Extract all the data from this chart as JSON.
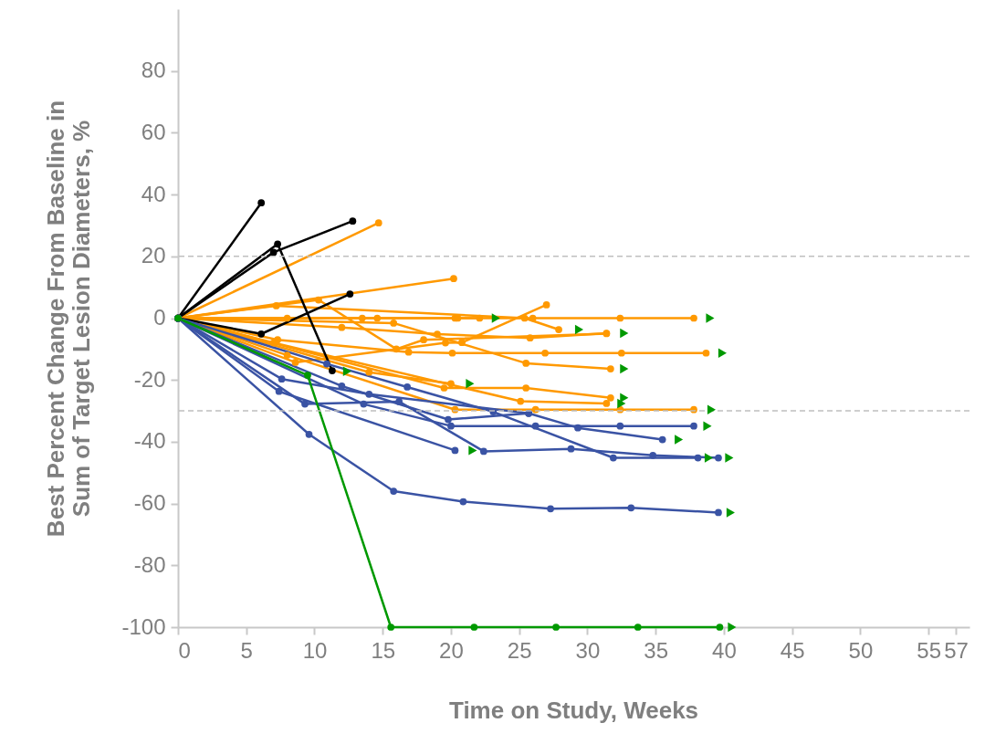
{
  "chart_data": {
    "type": "line",
    "xlabel": "Time on Study, Weeks",
    "ylabel": "Best Percent Change From Baseline in\nSum of Target Lesion Diameters, %",
    "xlim": [
      0,
      58
    ],
    "xticks": [
      0,
      5,
      10,
      15,
      20,
      25,
      30,
      35,
      40,
      45,
      50,
      55,
      57
    ],
    "ylim": [
      -100,
      100
    ],
    "yticks": [
      -100,
      -80,
      -60,
      -40,
      -20,
      0,
      20,
      40,
      60,
      80
    ],
    "grid": false,
    "marker": "circle",
    "line_style": "solid",
    "ref_lines": [
      {
        "axis": "y",
        "value": 20,
        "label": null,
        "color": "#bfbfbf",
        "line_style": "dashed"
      },
      {
        "axis": "y",
        "value": -30,
        "label": null,
        "color": "#bfbfbf",
        "line_style": "dashed"
      }
    ],
    "series": [
      {
        "color": "#ff9900",
        "x": [
          0,
          13.5,
          20.3,
          26,
          32.4,
          37.8
        ],
        "values": [
          0,
          0,
          0,
          0,
          0,
          0
        ]
      },
      {
        "color": "#ff9900",
        "x": [
          0,
          8,
          14.6,
          20.5,
          22.1
        ],
        "values": [
          0,
          0,
          0,
          0,
          0
        ]
      },
      {
        "color": "#ff9900",
        "x": [
          0,
          7.3,
          16.9,
          20.1,
          26.9,
          32.5,
          38.7
        ],
        "values": [
          0,
          -7,
          -11,
          -11.3,
          -11.3,
          -11.3,
          -11.3
        ]
      },
      {
        "color": "#ff9900",
        "x": [
          0,
          15.8,
          25.5,
          31.7
        ],
        "values": [
          0,
          -1.6,
          -14.6,
          -16.4
        ]
      },
      {
        "color": "#ff9900",
        "x": [
          0,
          12,
          19,
          25.8,
          31.4
        ],
        "values": [
          0,
          -3,
          -5.2,
          -6.4,
          -4.9
        ]
      },
      {
        "color": "#ff9900",
        "x": [
          0,
          7.2,
          25.4,
          27.9
        ],
        "values": [
          0,
          4,
          0,
          -3.7
        ]
      },
      {
        "color": "#ff9900",
        "x": [
          0,
          8.6,
          19.6,
          20.8,
          27
        ],
        "values": [
          0,
          -14.3,
          -8,
          -7.9,
          4.3
        ]
      },
      {
        "color": "#ff9900",
        "x": [
          0,
          20.2
        ],
        "values": [
          0,
          12.8
        ]
      },
      {
        "color": "#ff9900",
        "x": [
          0,
          14.7
        ],
        "values": [
          0,
          30.8
        ]
      },
      {
        "color": "#ff9900",
        "x": [
          0,
          19.5,
          25.5,
          31.7
        ],
        "values": [
          0,
          -22.6,
          -22.6,
          -25.8
        ]
      },
      {
        "color": "#ff9900",
        "x": [
          0,
          14,
          20
        ],
        "values": [
          0,
          -17.5,
          -21.2
        ]
      },
      {
        "color": "#ff9900",
        "x": [
          0,
          7,
          25.1,
          31.4
        ],
        "values": [
          0,
          -8,
          -26.9,
          -27.6
        ]
      },
      {
        "color": "#ff9900",
        "x": [
          0,
          8,
          20.3,
          26.2,
          32.4,
          37.8
        ],
        "values": [
          0,
          -12,
          -29.6,
          -29.6,
          -29.6,
          -29.6
        ]
      },
      {
        "color": "#ff9900",
        "x": [
          0,
          10.3,
          16,
          18,
          31.4
        ],
        "values": [
          0,
          5.9,
          -10,
          -7,
          -5
        ]
      },
      {
        "color": "#000000",
        "x": [
          0,
          6.1
        ],
        "values": [
          0,
          37.3
        ]
      },
      {
        "color": "#000000",
        "x": [
          0,
          7.3,
          11.3
        ],
        "values": [
          0,
          24,
          -17
        ]
      },
      {
        "color": "#000000",
        "x": [
          0,
          7,
          12.8
        ],
        "values": [
          0,
          21.3,
          31.4
        ]
      },
      {
        "color": "#000000",
        "x": [
          0,
          6.1,
          12.6
        ],
        "values": [
          0,
          -5.1,
          7.8
        ]
      },
      {
        "color": "#3a53a4",
        "x": [
          0,
          9.6,
          15.8,
          20.9,
          27.3,
          33.2,
          39.6
        ],
        "values": [
          0,
          -37.6,
          -56,
          -59.4,
          -61.7,
          -61.4,
          -62.9
        ]
      },
      {
        "color": "#3a53a4",
        "x": [
          0,
          7.4,
          20.3
        ],
        "values": [
          0,
          -23.7,
          -42.8
        ]
      },
      {
        "color": "#3a53a4",
        "x": [
          0,
          9.3,
          16.2,
          22.4,
          28.8,
          34.8,
          39.6
        ],
        "values": [
          0,
          -27.8,
          -27,
          -43.1,
          -42.3,
          -44.4,
          -45.2
        ]
      },
      {
        "color": "#3a53a4",
        "x": [
          0,
          10.9,
          16.8,
          23.1,
          31.9,
          38.1
        ],
        "values": [
          0,
          -14.8,
          -22.3,
          -30.3,
          -45.2,
          -45.2
        ]
      },
      {
        "color": "#3a53a4",
        "x": [
          0,
          7.6,
          14,
          25.7,
          29.3,
          35.5
        ],
        "values": [
          0,
          -19.7,
          -24.6,
          -30.8,
          -35.5,
          -39.3
        ]
      },
      {
        "color": "#3a53a4",
        "x": [
          0,
          13.6,
          20,
          26.2,
          32.4,
          37.8
        ],
        "values": [
          0,
          -27.8,
          -34.9,
          -34.9,
          -34.9,
          -34.9
        ]
      },
      {
        "color": "#3a53a4",
        "x": [
          0,
          12,
          19.8,
          25.7
        ],
        "values": [
          0,
          -22,
          -32.8,
          -30.8
        ]
      },
      {
        "color": "#009900",
        "x": [
          0,
          9.5,
          15.6,
          21.7,
          27.7,
          33.7,
          39.7
        ],
        "values": [
          0,
          -18.5,
          -100,
          -100,
          -100,
          -100,
          -100
        ]
      },
      {
        "type": "scatter",
        "marker": "triangle",
        "color": "#009900",
        "x": [
          40.6,
          40.5,
          21.6,
          40.4,
          38.9,
          36.7,
          38.8,
          39,
          23.3,
          32.7,
          29.4,
          39.9,
          32.7,
          32.7,
          21.4,
          32.5,
          39.1,
          12.4
        ],
        "values": [
          -100,
          -62.9,
          -42.8,
          -45.2,
          -45.2,
          -39.3,
          -34.9,
          0,
          0,
          -4.9,
          -3.7,
          -11.3,
          -16.4,
          -25.8,
          -21.2,
          -27.6,
          -29.6,
          -17.2
        ]
      }
    ]
  }
}
